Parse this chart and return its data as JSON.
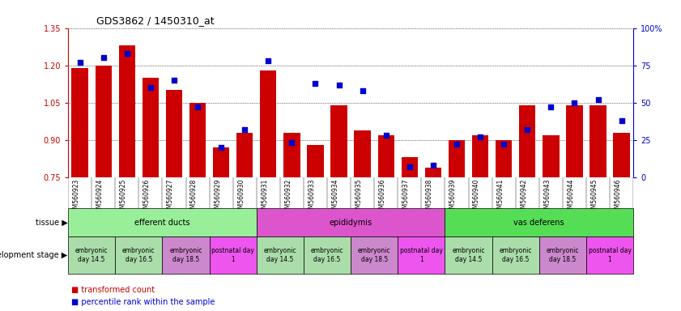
{
  "title": "GDS3862 / 1450310_at",
  "samples": [
    "GSM560923",
    "GSM560924",
    "GSM560925",
    "GSM560926",
    "GSM560927",
    "GSM560928",
    "GSM560929",
    "GSM560930",
    "GSM560931",
    "GSM560932",
    "GSM560933",
    "GSM560934",
    "GSM560935",
    "GSM560936",
    "GSM560937",
    "GSM560938",
    "GSM560939",
    "GSM560940",
    "GSM560941",
    "GSM560942",
    "GSM560943",
    "GSM560944",
    "GSM560945",
    "GSM560946"
  ],
  "transformed_count": [
    1.19,
    1.2,
    1.28,
    1.15,
    1.1,
    1.05,
    0.87,
    0.93,
    1.18,
    0.93,
    0.88,
    1.04,
    0.94,
    0.92,
    0.83,
    0.79,
    0.9,
    0.92,
    0.9,
    1.04,
    0.92,
    1.04,
    1.04,
    0.93
  ],
  "percentile_rank": [
    77,
    80,
    83,
    60,
    65,
    47,
    20,
    32,
    78,
    23,
    63,
    62,
    58,
    28,
    7,
    8,
    22,
    27,
    22,
    32,
    47,
    50,
    52,
    38
  ],
  "ylim_left": [
    0.75,
    1.35
  ],
  "ylim_right": [
    0,
    100
  ],
  "yticks_left": [
    0.75,
    0.9,
    1.05,
    1.2,
    1.35
  ],
  "yticks_right": [
    0,
    25,
    50,
    75,
    100
  ],
  "bar_color": "#cc0000",
  "scatter_color": "#0000cc",
  "tissue_groups": [
    {
      "label": "efferent ducts",
      "start": 0,
      "end": 7,
      "color": "#99ee99"
    },
    {
      "label": "epididymis",
      "start": 8,
      "end": 15,
      "color": "#dd55cc"
    },
    {
      "label": "vas deferens",
      "start": 16,
      "end": 23,
      "color": "#55dd55"
    }
  ],
  "dev_stage_groups": [
    {
      "label": "embryonic\nday 14.5",
      "start": 0,
      "end": 1,
      "color": "#aaddaa"
    },
    {
      "label": "embryonic\nday 16.5",
      "start": 2,
      "end": 3,
      "color": "#aaddaa"
    },
    {
      "label": "embryonic\nday 18.5",
      "start": 4,
      "end": 5,
      "color": "#cc88cc"
    },
    {
      "label": "postnatal day\n1",
      "start": 6,
      "end": 7,
      "color": "#ee55ee"
    },
    {
      "label": "embryonic\nday 14.5",
      "start": 8,
      "end": 9,
      "color": "#aaddaa"
    },
    {
      "label": "embryonic\nday 16.5",
      "start": 10,
      "end": 11,
      "color": "#aaddaa"
    },
    {
      "label": "embryonic\nday 18.5",
      "start": 12,
      "end": 13,
      "color": "#cc88cc"
    },
    {
      "label": "postnatal day\n1",
      "start": 14,
      "end": 15,
      "color": "#ee55ee"
    },
    {
      "label": "embryonic\nday 14.5",
      "start": 16,
      "end": 17,
      "color": "#aaddaa"
    },
    {
      "label": "embryonic\nday 16.5",
      "start": 18,
      "end": 19,
      "color": "#aaddaa"
    },
    {
      "label": "embryonic\nday 18.5",
      "start": 20,
      "end": 21,
      "color": "#cc88cc"
    },
    {
      "label": "postnatal day\n1",
      "start": 22,
      "end": 23,
      "color": "#ee55ee"
    }
  ],
  "legend_bar_label": "transformed count",
  "legend_scatter_label": "percentile rank within the sample",
  "tissue_label": "tissue",
  "dev_stage_label": "development stage",
  "background_color": "#ffffff",
  "plot_bg_color": "#ffffff",
  "grid_color": "#000000",
  "ytick_left_color": "#cc0000",
  "ytick_right_color": "#0000cc",
  "xtick_bg_color": "#cccccc"
}
